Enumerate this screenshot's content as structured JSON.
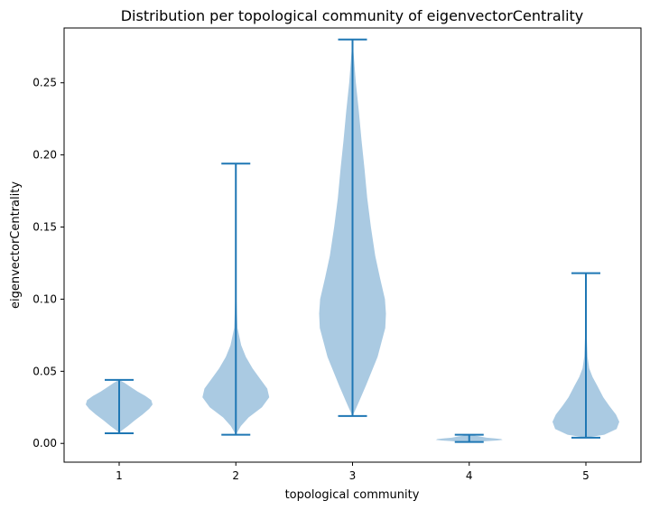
{
  "chart_data": {
    "type": "violin",
    "title": "Distribution per topological community of eigenvectorCentrality",
    "xlabel": "topological community",
    "ylabel": "eigenvectorCentrality",
    "categories": [
      "1",
      "2",
      "3",
      "4",
      "5"
    ],
    "ylim": [
      -0.013,
      0.288
    ],
    "yticks": [
      0.0,
      0.05,
      0.1,
      0.15,
      0.2,
      0.25
    ],
    "ytick_labels": [
      "0.00",
      "0.05",
      "0.10",
      "0.15",
      "0.20",
      "0.25"
    ],
    "grid": false,
    "colors": {
      "body": "#aacae2",
      "line": "#1f77b4"
    },
    "violins": [
      {
        "category": "1",
        "min": 0.007,
        "max": 0.044,
        "profile": [
          [
            0.007,
            0.0
          ],
          [
            0.009,
            0.08
          ],
          [
            0.012,
            0.26
          ],
          [
            0.016,
            0.47
          ],
          [
            0.02,
            0.7
          ],
          [
            0.024,
            0.9
          ],
          [
            0.027,
            1.0
          ],
          [
            0.03,
            0.96
          ],
          [
            0.033,
            0.78
          ],
          [
            0.036,
            0.55
          ],
          [
            0.039,
            0.35
          ],
          [
            0.042,
            0.16
          ],
          [
            0.044,
            0.0
          ]
        ]
      },
      {
        "category": "2",
        "min": 0.006,
        "max": 0.194,
        "profile": [
          [
            0.006,
            0.0
          ],
          [
            0.012,
            0.15
          ],
          [
            0.018,
            0.38
          ],
          [
            0.025,
            0.78
          ],
          [
            0.032,
            1.0
          ],
          [
            0.038,
            0.94
          ],
          [
            0.045,
            0.72
          ],
          [
            0.052,
            0.5
          ],
          [
            0.06,
            0.3
          ],
          [
            0.068,
            0.16
          ],
          [
            0.08,
            0.05
          ],
          [
            0.1,
            0.018
          ],
          [
            0.15,
            0.006
          ],
          [
            0.194,
            0.0
          ]
        ]
      },
      {
        "category": "3",
        "min": 0.019,
        "max": 0.28,
        "profile": [
          [
            0.019,
            0.0
          ],
          [
            0.025,
            0.12
          ],
          [
            0.04,
            0.4
          ],
          [
            0.06,
            0.75
          ],
          [
            0.08,
            0.98
          ],
          [
            0.09,
            1.0
          ],
          [
            0.1,
            0.97
          ],
          [
            0.115,
            0.82
          ],
          [
            0.13,
            0.68
          ],
          [
            0.15,
            0.55
          ],
          [
            0.17,
            0.44
          ],
          [
            0.19,
            0.36
          ],
          [
            0.21,
            0.27
          ],
          [
            0.23,
            0.19
          ],
          [
            0.25,
            0.1
          ],
          [
            0.265,
            0.05
          ],
          [
            0.28,
            0.0
          ]
        ]
      },
      {
        "category": "4",
        "min": 0.001,
        "max": 0.006,
        "profile": [
          [
            0.001,
            0.0
          ],
          [
            0.0015,
            0.45
          ],
          [
            0.002,
            0.82
          ],
          [
            0.0025,
            1.0
          ],
          [
            0.003,
            0.95
          ],
          [
            0.0035,
            0.75
          ],
          [
            0.004,
            0.52
          ],
          [
            0.005,
            0.28
          ],
          [
            0.006,
            0.0
          ]
        ]
      },
      {
        "category": "5",
        "min": 0.004,
        "max": 0.118,
        "profile": [
          [
            0.004,
            0.0
          ],
          [
            0.006,
            0.55
          ],
          [
            0.01,
            0.92
          ],
          [
            0.015,
            1.0
          ],
          [
            0.02,
            0.9
          ],
          [
            0.026,
            0.7
          ],
          [
            0.032,
            0.52
          ],
          [
            0.04,
            0.34
          ],
          [
            0.046,
            0.2
          ],
          [
            0.052,
            0.1
          ],
          [
            0.06,
            0.05
          ],
          [
            0.08,
            0.015
          ],
          [
            0.118,
            0.0
          ]
        ]
      }
    ]
  }
}
